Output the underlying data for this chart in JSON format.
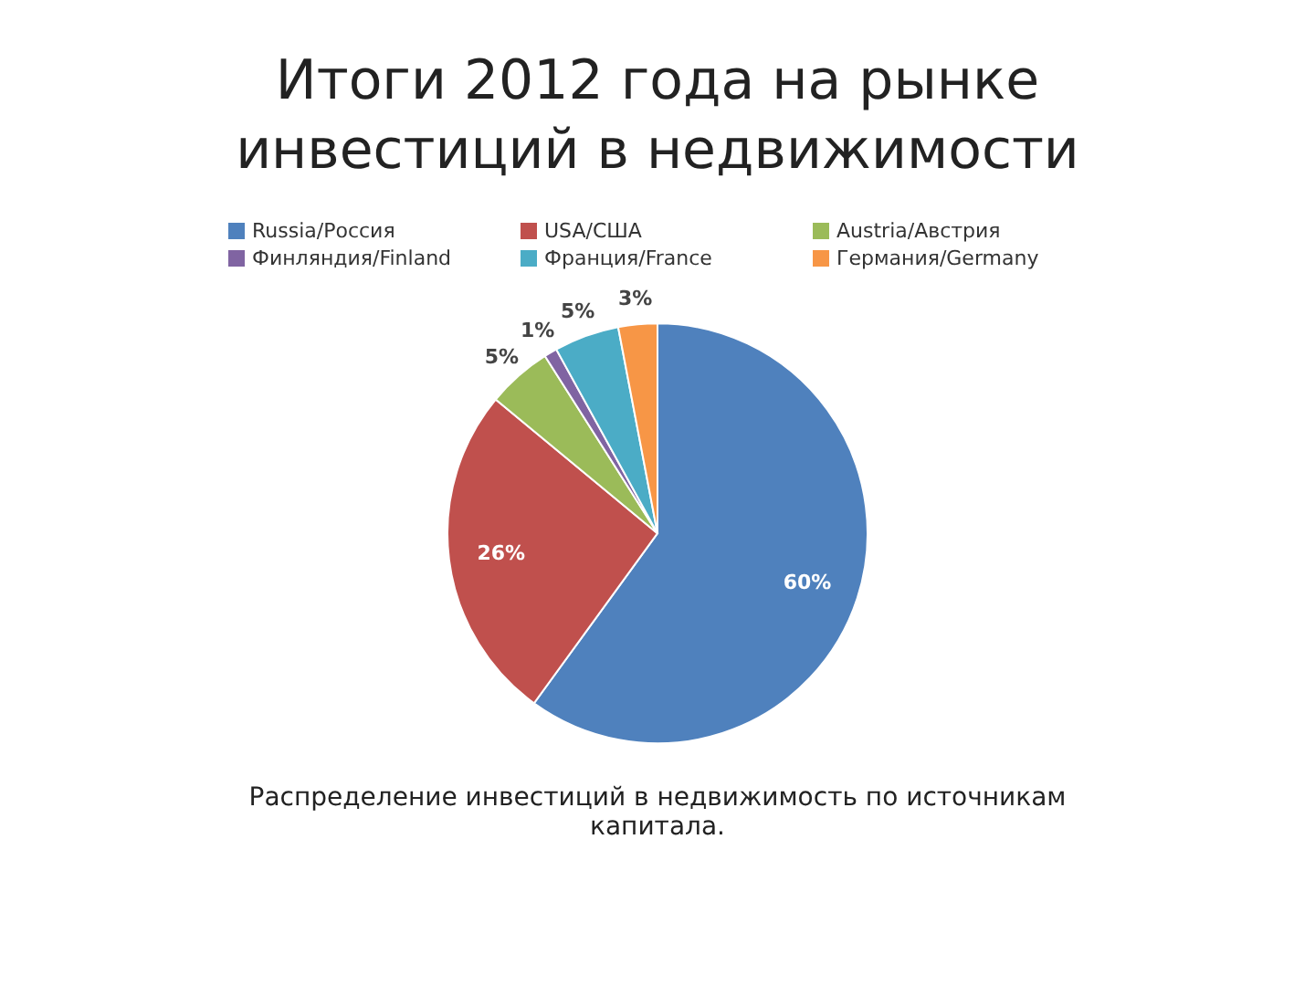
{
  "chart_data": {
    "type": "pie",
    "title": "Итоги 2012 года на рынке инвестиций в недвижимости",
    "categories": [
      "Russia/Россия",
      "USA/США",
      "Austria/Австрия",
      "Финляндия/Finland",
      "Франция/France",
      "Германия/Germany"
    ],
    "values": [
      60,
      26,
      5,
      1,
      5,
      3
    ],
    "colors": [
      "#4f81bd",
      "#c0504d",
      "#9bbb59",
      "#8064a2",
      "#4bacc6",
      "#f79646"
    ],
    "value_labels": [
      "60%",
      "26%",
      "5%",
      "1%",
      "5%",
      "3%"
    ],
    "legend": "top",
    "annotations": [
      "Распределение инвестиций в недвижимость по источникам капитала."
    ]
  }
}
